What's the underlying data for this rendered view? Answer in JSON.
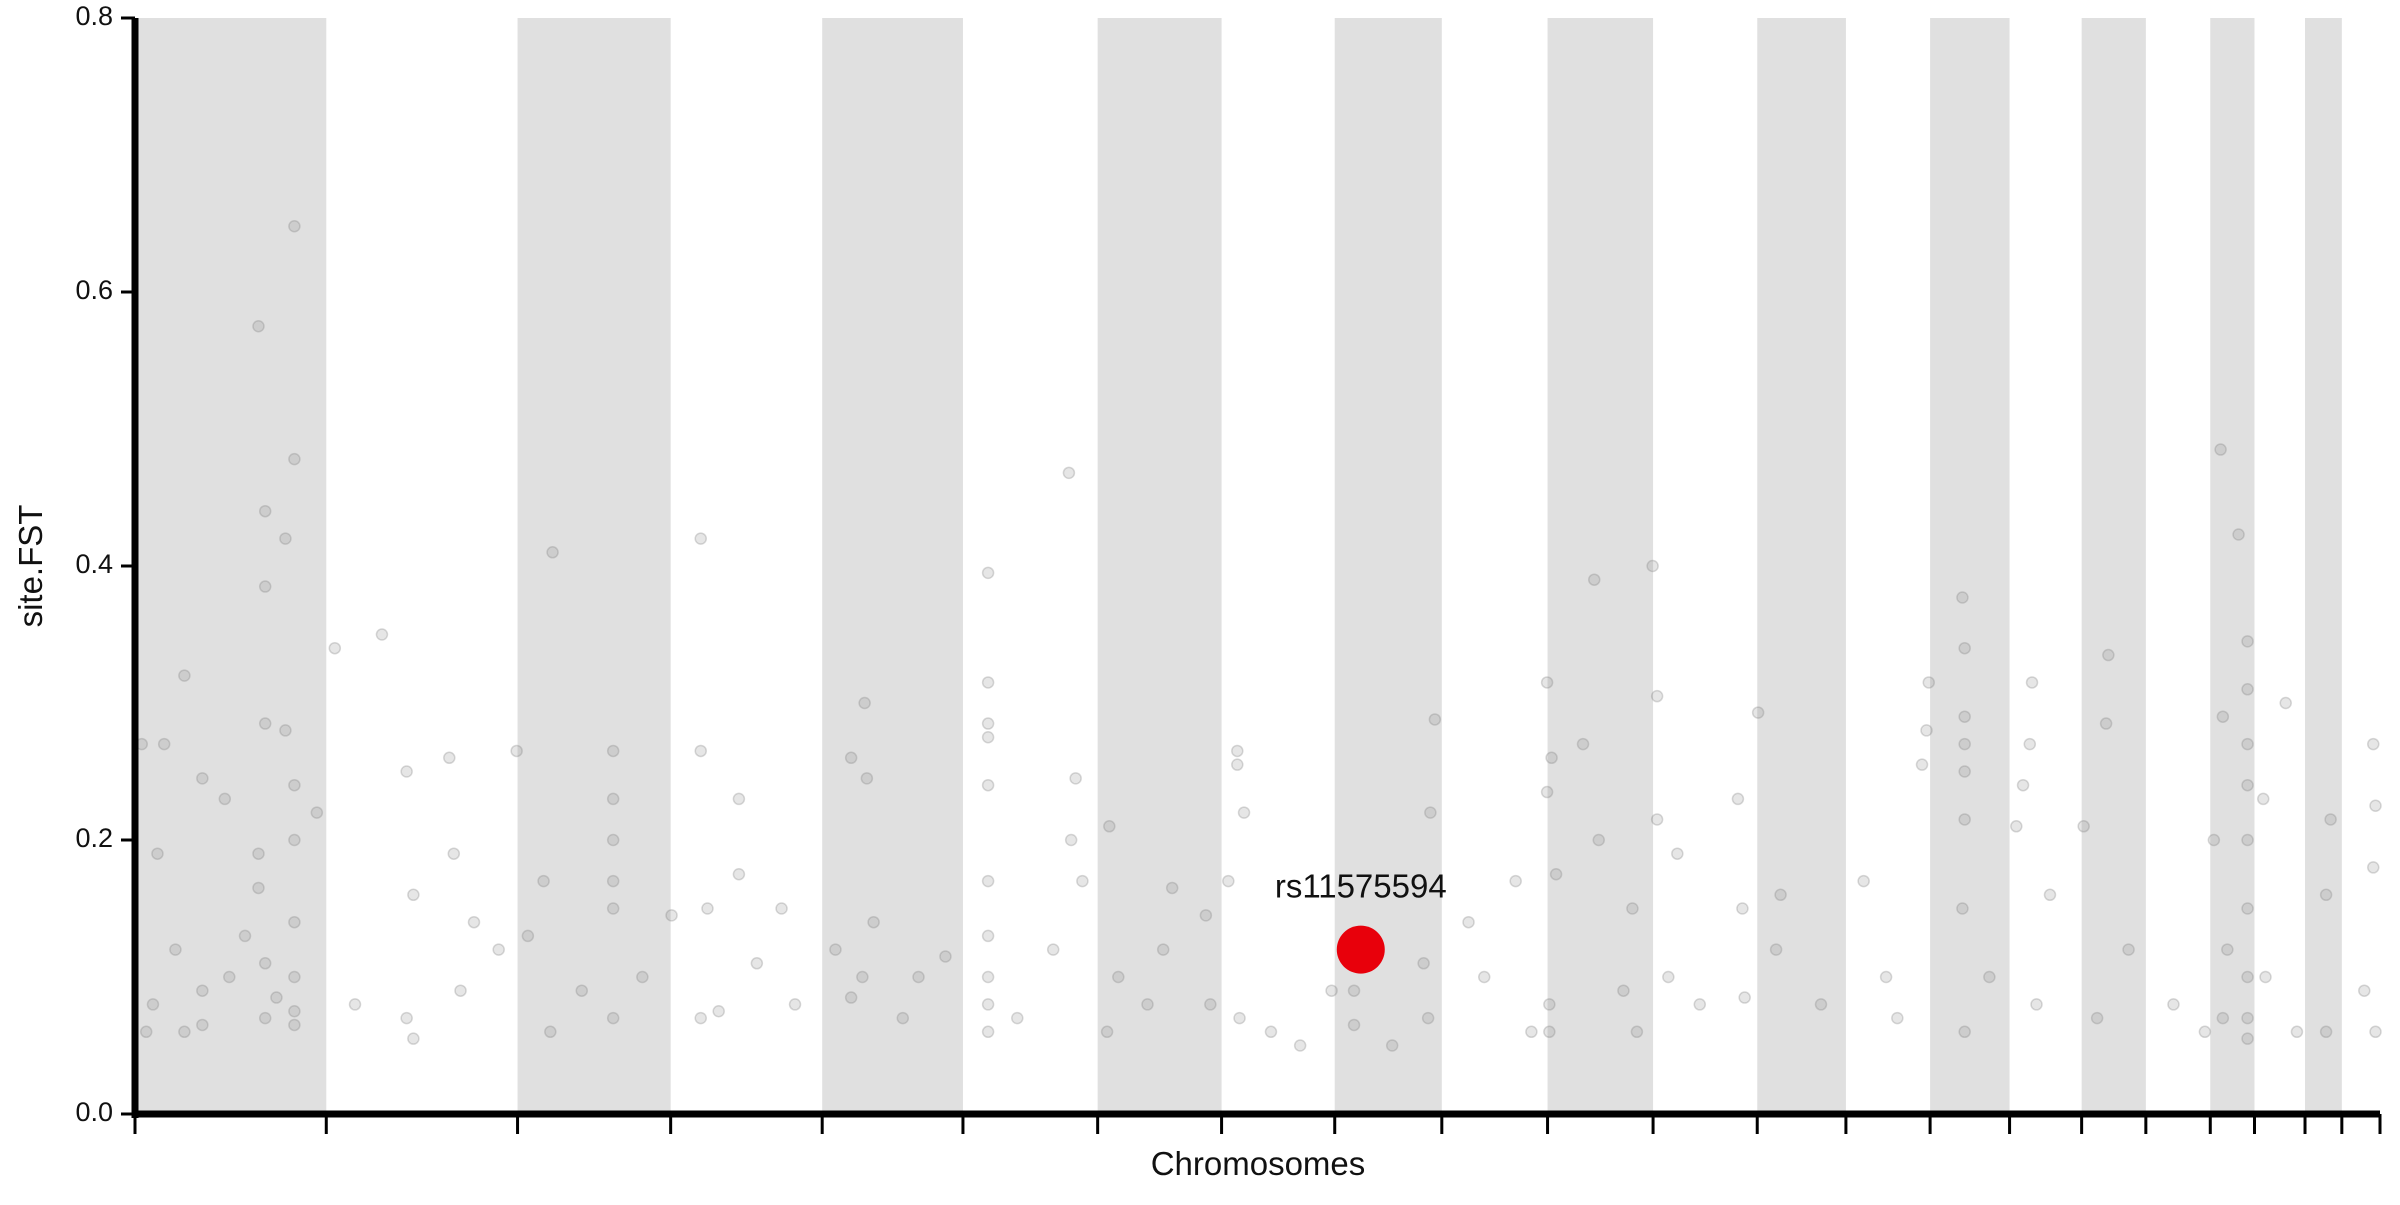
{
  "chart_data": {
    "type": "scatter",
    "xlabel": "Chromosomes",
    "ylabel": "site.FST",
    "xlim": [
      0,
      100
    ],
    "ylim": [
      0,
      0.8
    ],
    "yticks": [
      {
        "value": 0,
        "label": "0.0"
      },
      0.2,
      0.4,
      0.6,
      0.8
    ],
    "chromosome_bounds": [
      0,
      8.52,
      17.04,
      23.86,
      30.61,
      36.88,
      42.88,
      48.4,
      53.44,
      58.21,
      62.92,
      67.62,
      72.26,
      76.21,
      79.96,
      83.5,
      86.71,
      89.57,
      92.44,
      94.41,
      96.66,
      98.3,
      100
    ],
    "band_color": "#e0e0e0",
    "series": [
      {
        "color": "#808080",
        "x": [
          0.3,
          1.0,
          1.3,
          2.2,
          3.0,
          4.0,
          5.5,
          5.8,
          5.8,
          5.8,
          6.7,
          6.7,
          7.1,
          7.1,
          7.1,
          7.1,
          8.1,
          5.5,
          5.5,
          7.1,
          7.1,
          7.1,
          7.1,
          3.0,
          3.0,
          0.8,
          1.8,
          4.2,
          5.8,
          5.8,
          4.9,
          6.3,
          2.2,
          0.5,
          8.9,
          11.0,
          12.1,
          12.4,
          14.0,
          14.2,
          12.1,
          12.4,
          9.8,
          15.1,
          16.2,
          14.5,
          17.0,
          18.6,
          18.2,
          17.5,
          21.3,
          21.3,
          21.3,
          21.3,
          21.3,
          21.3,
          18.5,
          22.6,
          23.9,
          19.9,
          25.2,
          25.2,
          26.9,
          26.9,
          25.5,
          27.7,
          25.2,
          26.0,
          29.4,
          28.8,
          32.5,
          31.9,
          32.6,
          31.9,
          32.4,
          31.2,
          34.9,
          36.1,
          32.9,
          34.2,
          38.0,
          38.0,
          38.0,
          38.0,
          38.0,
          38.0,
          38.0,
          38.0,
          38.0,
          38.0,
          39.3,
          40.9,
          41.6,
          41.9,
          42.2,
          43.4,
          41.7,
          43.8,
          45.8,
          46.2,
          47.9,
          47.7,
          45.1,
          43.3,
          49.1,
          49.1,
          49.4,
          48.7,
          49.2,
          50.6,
          51.9,
          54.3,
          54.3,
          57.4,
          57.7,
          57.9,
          57.6,
          56.0,
          53.3,
          59.4,
          61.5,
          62.2,
          60.1,
          62.9,
          63.1,
          62.9,
          63.3,
          64.5,
          65.0,
          63.0,
          63.0,
          65.2,
          66.7,
          66.3,
          66.9,
          67.6,
          67.8,
          67.8,
          68.7,
          68.3,
          69.7,
          71.4,
          71.6,
          71.7,
          72.3,
          73.3,
          73.1,
          75.1,
          77.0,
          78.0,
          79.6,
          79.9,
          79.8,
          78.5,
          81.4,
          81.5,
          81.5,
          81.5,
          81.5,
          81.5,
          81.4,
          81.5,
          82.6,
          83.8,
          84.5,
          84.4,
          84.1,
          85.3,
          84.7,
          86.8,
          87.9,
          87.8,
          88.8,
          87.4,
          90.8,
          92.2,
          92.9,
          93.7,
          93.0,
          92.6,
          93.2,
          93.0,
          94.1,
          94.1,
          94.1,
          94.1,
          94.1,
          94.1,
          94.1,
          94.1,
          94.1,
          94.8,
          95.8,
          94.9,
          96.3,
          97.8,
          97.6,
          97.6,
          99.7,
          99.8,
          99.7,
          99.3,
          99.8
        ],
        "values": [
          0.27,
          0.19,
          0.27,
          0.32,
          0.245,
          0.23,
          0.575,
          0.44,
          0.385,
          0.285,
          0.42,
          0.28,
          0.648,
          0.478,
          0.24,
          0.2,
          0.22,
          0.19,
          0.165,
          0.14,
          0.1,
          0.075,
          0.065,
          0.09,
          0.065,
          0.08,
          0.12,
          0.1,
          0.11,
          0.07,
          0.13,
          0.085,
          0.06,
          0.06,
          0.34,
          0.35,
          0.25,
          0.16,
          0.26,
          0.19,
          0.07,
          0.055,
          0.08,
          0.14,
          0.12,
          0.09,
          0.265,
          0.41,
          0.17,
          0.13,
          0.265,
          0.23,
          0.2,
          0.17,
          0.15,
          0.07,
          0.06,
          0.1,
          0.145,
          0.09,
          0.42,
          0.265,
          0.23,
          0.175,
          0.15,
          0.11,
          0.07,
          0.075,
          0.08,
          0.15,
          0.3,
          0.26,
          0.245,
          0.085,
          0.1,
          0.12,
          0.1,
          0.115,
          0.14,
          0.07,
          0.395,
          0.315,
          0.285,
          0.275,
          0.24,
          0.17,
          0.13,
          0.1,
          0.08,
          0.06,
          0.07,
          0.12,
          0.468,
          0.245,
          0.17,
          0.21,
          0.2,
          0.1,
          0.12,
          0.165,
          0.08,
          0.145,
          0.08,
          0.06,
          0.265,
          0.255,
          0.22,
          0.17,
          0.07,
          0.06,
          0.05,
          0.09,
          0.065,
          0.11,
          0.22,
          0.288,
          0.07,
          0.05,
          0.09,
          0.14,
          0.17,
          0.06,
          0.1,
          0.315,
          0.26,
          0.235,
          0.175,
          0.27,
          0.39,
          0.08,
          0.06,
          0.2,
          0.15,
          0.09,
          0.06,
          0.4,
          0.305,
          0.215,
          0.19,
          0.1,
          0.08,
          0.23,
          0.15,
          0.085,
          0.293,
          0.16,
          0.12,
          0.08,
          0.17,
          0.1,
          0.255,
          0.315,
          0.28,
          0.07,
          0.377,
          0.34,
          0.29,
          0.27,
          0.25,
          0.215,
          0.15,
          0.06,
          0.1,
          0.21,
          0.315,
          0.27,
          0.24,
          0.16,
          0.08,
          0.21,
          0.335,
          0.285,
          0.12,
          0.07,
          0.08,
          0.06,
          0.485,
          0.423,
          0.29,
          0.2,
          0.12,
          0.07,
          0.345,
          0.31,
          0.27,
          0.24,
          0.2,
          0.15,
          0.1,
          0.07,
          0.055,
          0.23,
          0.3,
          0.1,
          0.06,
          0.215,
          0.16,
          0.06,
          0.27,
          0.225,
          0.18,
          0.09,
          0.06
        ]
      }
    ],
    "highlight": {
      "label": "rs11575594",
      "x": 54.6,
      "value": 0.12,
      "color": "#e8000b"
    }
  }
}
